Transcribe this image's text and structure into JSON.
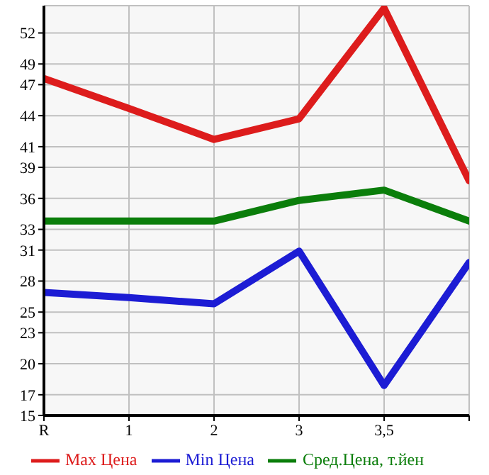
{
  "chart_data": {
    "type": "line",
    "categories": [
      "R",
      "1",
      "2",
      "3",
      "3,5",
      null
    ],
    "series": [
      {
        "name": "Max Цена",
        "color": "#dd1c1c",
        "values": [
          47.6,
          44.7,
          41.7,
          43.7,
          54.4,
          37.7
        ]
      },
      {
        "name": "Min Цена",
        "color": "#1c1cd4",
        "values": [
          26.9,
          26.4,
          25.8,
          30.9,
          17.9,
          29.8
        ]
      },
      {
        "name": "Сред.Цена, т.йен",
        "color": "#0b7e0b",
        "values": [
          33.8,
          33.8,
          33.8,
          35.8,
          36.8,
          33.8
        ]
      }
    ],
    "ylim": [
      15,
      54.64
    ],
    "yticks": [
      15,
      17,
      20,
      23,
      25,
      28,
      31,
      33,
      36,
      39,
      41,
      44,
      47,
      49,
      52
    ],
    "grid": true,
    "legend": "bottom",
    "marker": "none",
    "line_style": "solid"
  }
}
